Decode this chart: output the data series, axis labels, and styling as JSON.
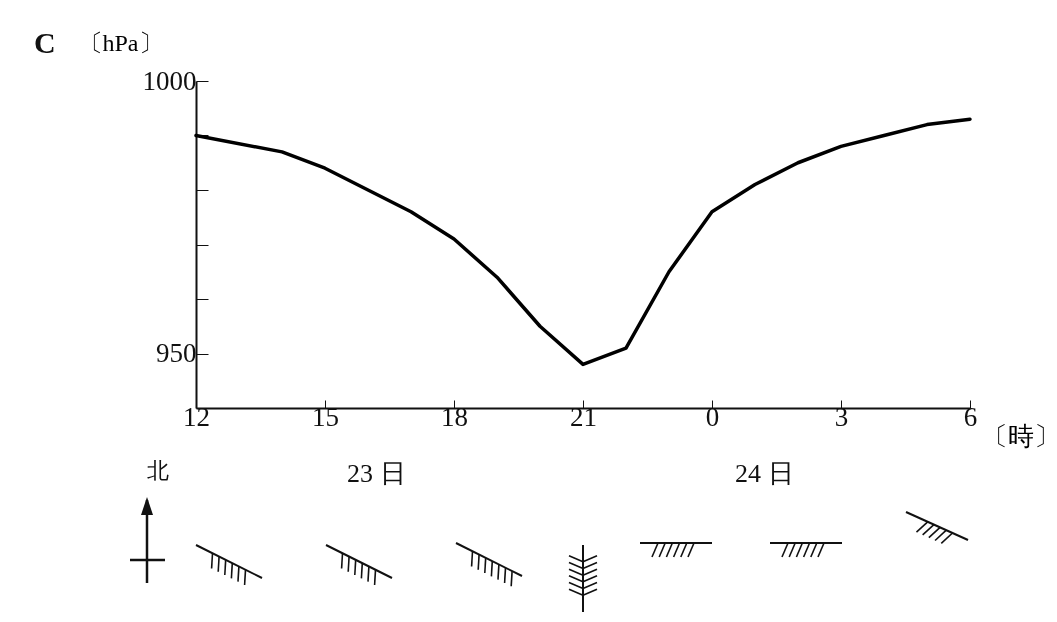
{
  "chart_data": {
    "type": "line",
    "xlabel": "〔時〕",
    "ylabel": "〔hPa〕",
    "annotations": [
      "C",
      "北",
      "23 日",
      "24 日"
    ],
    "x": [
      "--01-23T12:00",
      "--01-23T14:00",
      "--01-23T15:00",
      "--01-23T16:00",
      "--01-23T17:00",
      "--01-23T18:00",
      "--01-23T19:00",
      "--01-23T20:00",
      "--01-23T21:00",
      "--01-23T22:00",
      "--01-23T23:00",
      "--01-24T00:00",
      "--01-24T01:00",
      "--01-24T02:00",
      "--01-24T03:00",
      "--01-24T04:00",
      "--01-24T05:00",
      "--01-24T06:00"
    ],
    "series": [
      {
        "color": "#000000",
        "values": [
          990,
          987,
          984,
          980,
          976,
          971,
          964,
          955,
          948,
          951,
          965,
          976,
          981,
          985,
          988,
          990,
          992,
          993
        ]
      }
    ],
    "xlim": [
      "--01-23T12:00",
      "--01-24T06:00"
    ],
    "xticks": [
      {
        "value": "--01-23T12:00",
        "label": "12"
      },
      {
        "value": "--01-23T15:00",
        "label": "15"
      },
      {
        "value": "--01-23T18:00",
        "label": "18"
      },
      {
        "value": "--01-23T21:00",
        "label": "21"
      },
      {
        "value": "--01-24T00:00",
        "label": "0"
      },
      {
        "value": "--01-24T03:00",
        "label": "3"
      },
      {
        "value": "--01-24T06:00",
        "label": "6"
      }
    ],
    "ylim": [
      940,
      1000
    ],
    "yticks": [
      1000,
      {
        "value": 990,
        "label": null
      },
      {
        "value": 980,
        "label": null
      },
      {
        "value": 970,
        "label": null
      },
      {
        "value": 960,
        "label": null
      },
      950
    ],
    "grid": false,
    "marker": "none",
    "line_style": "solid"
  }
}
